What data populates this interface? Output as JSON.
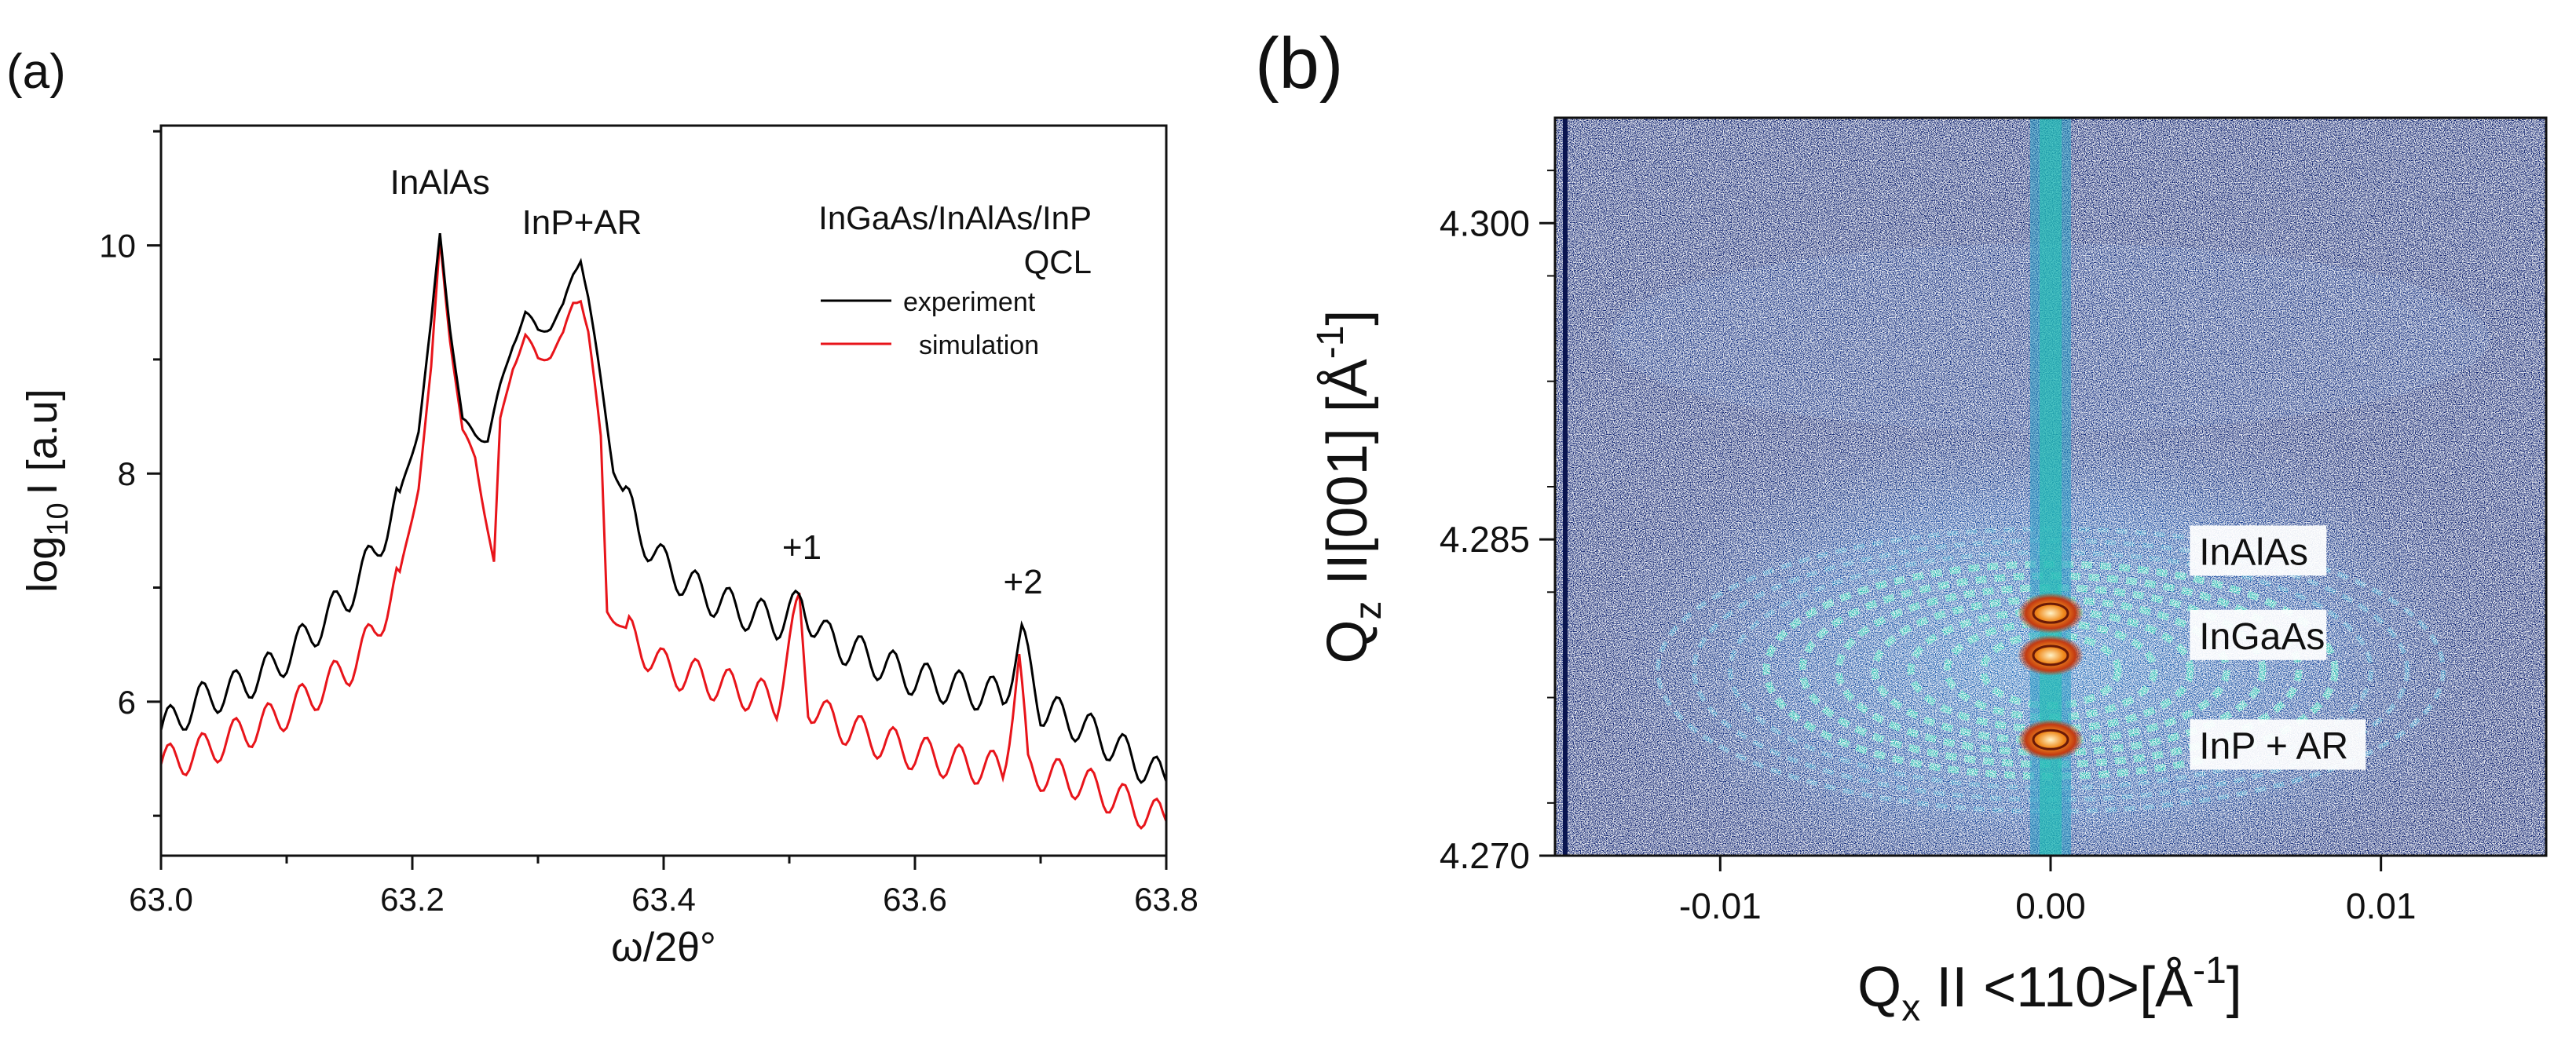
{
  "panel_a_label": "(a)",
  "panel_b_label": "(b)",
  "chart_data": [
    {
      "type": "line",
      "title": "",
      "sample_label": [
        "InGaAs/InAlAs/InP",
        "QCL"
      ],
      "xlabel": "ω/2θ°",
      "ylabel_parts": {
        "base": "log",
        "sub": "10",
        "rest": "I [a.u]"
      },
      "xlim": [
        63.0,
        63.8
      ],
      "ylim": [
        4.65,
        11.05
      ],
      "xticks": [
        "63.0",
        "63.2",
        "63.4",
        "63.6",
        "63.8"
      ],
      "xtick_values": [
        63.0,
        63.2,
        63.4,
        63.6,
        63.8
      ],
      "yticks": [
        "6",
        "8",
        "10"
      ],
      "ytick_values": [
        6,
        8,
        10
      ],
      "legend": [
        {
          "name": "experiment",
          "color": "#000000"
        },
        {
          "name": "simulation",
          "color": "#e8141a"
        }
      ],
      "annotations": [
        {
          "text": "InAlAs",
          "x": 63.222,
          "y": 10.45
        },
        {
          "text": "InP+AR",
          "x": 63.335,
          "y": 10.1
        },
        {
          "text": "+1",
          "x": 63.51,
          "y": 7.25
        },
        {
          "text": "+2",
          "x": 63.686,
          "y": 6.95
        }
      ],
      "series": [
        {
          "name": "experiment",
          "color": "#000000",
          "x": [
            63.0,
            63.03,
            63.06,
            63.09,
            63.12,
            63.15,
            63.17,
            63.19,
            63.205,
            63.215,
            63.222,
            63.23,
            63.24,
            63.25,
            63.26,
            63.27,
            63.28,
            63.29,
            63.3,
            63.31,
            63.32,
            63.328,
            63.334,
            63.34,
            63.35,
            63.36,
            63.38,
            63.4,
            63.43,
            63.46,
            63.49,
            63.51,
            63.53,
            63.56,
            63.6,
            63.64,
            63.67,
            63.685,
            63.7,
            63.73,
            63.76,
            63.8
          ],
          "y": [
            5.75,
            6.0,
            6.12,
            6.3,
            6.6,
            6.95,
            7.3,
            7.8,
            8.4,
            9.3,
            10.1,
            9.3,
            8.45,
            8.35,
            8.3,
            8.75,
            9.15,
            9.4,
            9.25,
            9.3,
            9.45,
            9.75,
            9.9,
            9.55,
            8.8,
            8.05,
            7.5,
            7.2,
            6.95,
            6.8,
            6.7,
            6.85,
            6.55,
            6.4,
            6.2,
            6.1,
            6.05,
            6.55,
            5.95,
            5.8,
            5.6,
            5.3
          ]
        },
        {
          "name": "simulation",
          "color": "#e8141a",
          "x": [
            63.0,
            63.03,
            63.06,
            63.09,
            63.12,
            63.15,
            63.17,
            63.19,
            63.205,
            63.215,
            63.222,
            63.23,
            63.24,
            63.25,
            63.265,
            63.27,
            63.28,
            63.29,
            63.3,
            63.31,
            63.32,
            63.328,
            63.334,
            63.34,
            63.35,
            63.355,
            63.38,
            63.4,
            63.43,
            63.46,
            63.49,
            63.508,
            63.515,
            63.53,
            63.56,
            63.6,
            63.64,
            63.67,
            63.683,
            63.69,
            63.73,
            63.76,
            63.8
          ],
          "y": [
            5.45,
            5.55,
            5.7,
            5.85,
            6.05,
            6.3,
            6.6,
            7.1,
            7.9,
            8.9,
            10.05,
            9.2,
            8.35,
            8.15,
            7.2,
            8.45,
            8.95,
            9.2,
            9.0,
            9.05,
            9.2,
            9.5,
            9.55,
            9.25,
            8.3,
            6.8,
            6.5,
            6.3,
            6.2,
            6.1,
            6.0,
            6.85,
            6.0,
            5.85,
            5.7,
            5.55,
            5.45,
            5.4,
            6.35,
            5.4,
            5.3,
            5.15,
            4.95
          ]
        }
      ]
    },
    {
      "type": "heatmap",
      "title": "",
      "xlabel_parts": {
        "base": "Q",
        "sub": "x",
        "rest": " II <110>[Å",
        "sup": "-1",
        "close": "]"
      },
      "ylabel_parts": {
        "base": "Q",
        "sub": "z",
        "rest": " II[001] [Å",
        "sup": "-1",
        "close": "]"
      },
      "xlim": [
        -0.015,
        0.015
      ],
      "ylim": [
        4.27,
        4.305
      ],
      "xticks": [
        "-0.01",
        "0.00",
        "0.01"
      ],
      "xtick_values": [
        -0.01,
        0.0,
        0.01
      ],
      "yticks": [
        "4.270",
        "4.285",
        "4.300"
      ],
      "ytick_values": [
        4.27,
        4.285,
        4.3
      ],
      "colors": {
        "background": "#0b1f6e",
        "mid": "#1f63b8",
        "contour": "#21c6b0",
        "peak": "#d64a12"
      },
      "peaks": [
        {
          "name": "InAlAs",
          "qx": 0.0,
          "qz": 4.2815
        },
        {
          "name": "InGaAs",
          "qx": 0.0,
          "qz": 4.2795
        },
        {
          "name": "InP + AR",
          "qx": 0.0,
          "qz": 4.2755
        }
      ],
      "annotations": [
        {
          "text": "InAlAs",
          "x": 0.0045,
          "y": 4.2838
        },
        {
          "text": "InGaAs",
          "x": 0.0045,
          "y": 4.2798
        },
        {
          "text": "InP + AR",
          "x": 0.0045,
          "y": 4.2746
        }
      ]
    }
  ]
}
